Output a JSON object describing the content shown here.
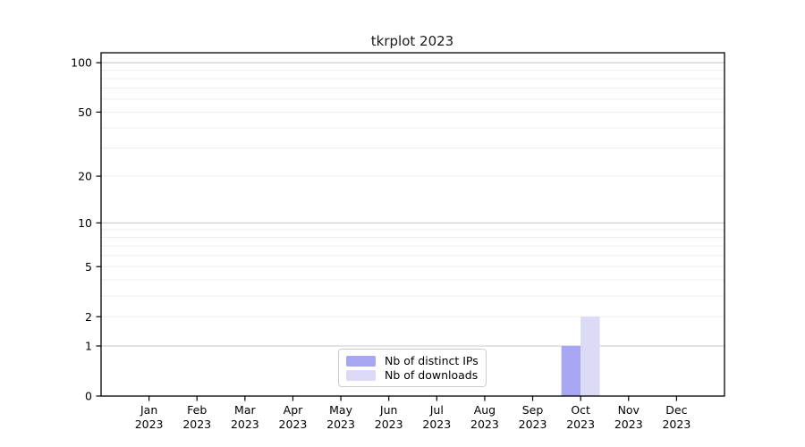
{
  "figure": {
    "background": "#ffffff",
    "text_color": "#000000",
    "axis_color": "#000000"
  },
  "chart_data": {
    "type": "bar",
    "title": "tkrplot 2023",
    "categories": [
      "Jan",
      "Feb",
      "Mar",
      "Apr",
      "May",
      "Jun",
      "Jul",
      "Aug",
      "Sep",
      "Oct",
      "Nov",
      "Dec"
    ],
    "category_year": "2023",
    "series": [
      {
        "name": "Nb of distinct IPs",
        "color": "#a6a6f2",
        "values": [
          0,
          0,
          0,
          0,
          0,
          0,
          0,
          0,
          0,
          1,
          0,
          0
        ]
      },
      {
        "name": "Nb of downloads",
        "color": "#dbdbf8",
        "values": [
          0,
          0,
          0,
          0,
          0,
          0,
          0,
          0,
          0,
          2,
          0,
          0
        ]
      }
    ],
    "xlabel": "",
    "ylabel": "",
    "yscale": "log1p",
    "ylim": [
      0,
      115
    ],
    "yticks": [
      0,
      1,
      2,
      5,
      10,
      20,
      50,
      100
    ],
    "grid": {
      "major_values": [
        1,
        10,
        100
      ],
      "minor_values": [
        2,
        3,
        4,
        5,
        6,
        7,
        8,
        9,
        20,
        30,
        40,
        50,
        60,
        70,
        80,
        90
      ],
      "major_color": "#c9c9c9",
      "minor_color": "#ededed"
    },
    "legend": {
      "position": "bottom-center-inside",
      "entries": [
        "Nb of distinct IPs",
        "Nb of downloads"
      ]
    }
  }
}
